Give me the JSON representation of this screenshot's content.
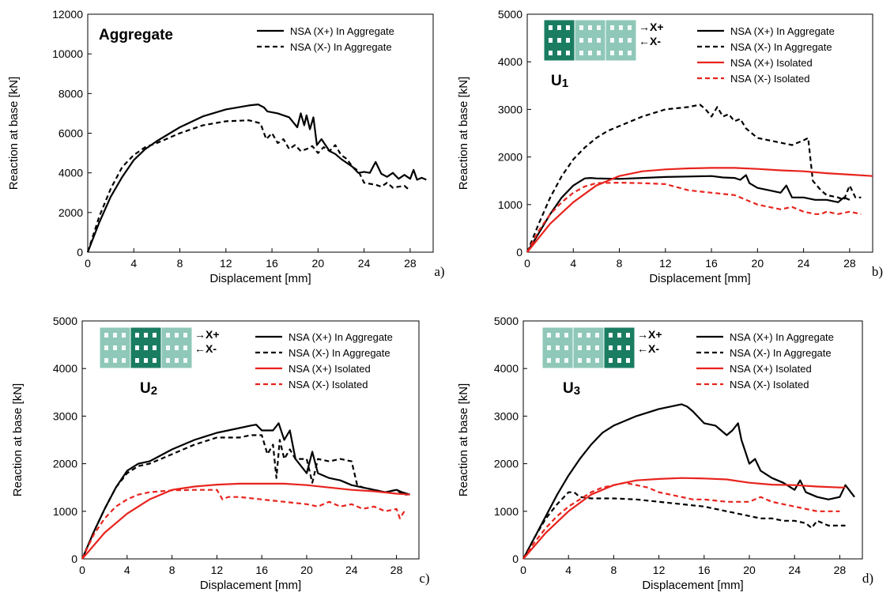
{
  "chart_data": [
    {
      "panel": "a)",
      "type": "line",
      "title": "Aggregate",
      "xlabel": "Displacement [mm]",
      "ylabel": "Reaction at base [kN]",
      "xlim": [
        0,
        30
      ],
      "ylim": [
        0,
        12000
      ],
      "xticks": [
        "0",
        "4",
        "8",
        "12",
        "16",
        "20",
        "24",
        "28"
      ],
      "yticks": [
        "0",
        "2000",
        "4000",
        "6000",
        "8000",
        "10000",
        "12000"
      ],
      "grid": false,
      "legend_position": "top-right",
      "series": [
        {
          "name": "NSA (X+) In Aggregate",
          "color": "#000000",
          "dashed": false,
          "x": [
            0,
            1,
            2,
            3,
            4,
            5,
            6,
            8,
            10,
            12,
            14,
            14.8,
            15.3,
            15.6,
            16.5,
            17.5,
            18.2,
            18.5,
            18.8,
            19.0,
            19.3,
            19.6,
            19.9,
            20.3,
            21,
            21.5,
            22,
            22.5,
            23,
            23.5,
            24,
            24.5,
            25,
            25.5,
            26,
            26.5,
            27,
            27.5,
            28,
            28.3,
            28.6,
            29,
            29.4
          ],
          "y": [
            0,
            1500,
            2800,
            3800,
            4650,
            5200,
            5600,
            6300,
            6850,
            7200,
            7400,
            7450,
            7300,
            7100,
            7000,
            6800,
            6300,
            7000,
            6400,
            6900,
            6200,
            6800,
            5400,
            5700,
            5100,
            4950,
            4700,
            4500,
            4300,
            4000,
            4050,
            4000,
            4550,
            3950,
            3800,
            4000,
            3700,
            3900,
            3700,
            4150,
            3650,
            3750,
            3650
          ]
        },
        {
          "name": "NSA (X-) In Aggregate",
          "color": "#000000",
          "dashed": true,
          "x": [
            0,
            1,
            2,
            3,
            4,
            5,
            6,
            8,
            10,
            12,
            14,
            15,
            15.5,
            16,
            16.5,
            17,
            17.5,
            18,
            18.5,
            19,
            19.5,
            20,
            20.5,
            21,
            21.5,
            22,
            22.5,
            23,
            23.5,
            24,
            24.5,
            25,
            25.5,
            26,
            26.5,
            27,
            27.5,
            28
          ],
          "y": [
            0,
            1800,
            3200,
            4300,
            4900,
            5300,
            5500,
            6000,
            6400,
            6600,
            6650,
            6500,
            5700,
            6000,
            5500,
            5700,
            5200,
            5400,
            5100,
            5200,
            5350,
            5000,
            5300,
            5100,
            5400,
            4900,
            4700,
            4300,
            4100,
            3500,
            3450,
            3400,
            3300,
            3500,
            3250,
            3300,
            3350,
            3100
          ]
        }
      ]
    },
    {
      "panel": "b)",
      "type": "line",
      "title": "U1",
      "xlabel": "Displacement [mm]",
      "ylabel": "Reaction at base [kN]",
      "xlim": [
        0,
        30
      ],
      "ylim": [
        0,
        5000
      ],
      "xticks": [
        "0",
        "4",
        "8",
        "12",
        "16",
        "20",
        "24",
        "28"
      ],
      "yticks": [
        "0",
        "1000",
        "2000",
        "3000",
        "4000",
        "5000"
      ],
      "grid": false,
      "legend_position": "top-right",
      "arrows": [
        "→X+",
        "←X-"
      ],
      "highlight_unit": 1,
      "series": [
        {
          "name": "NSA (X+) In Aggregate",
          "color": "#000000",
          "dashed": false,
          "x": [
            0,
            1,
            2,
            3,
            4,
            5,
            5.5,
            6,
            8,
            10,
            12,
            14,
            16,
            17,
            18,
            18.5,
            19,
            19.3,
            20,
            21,
            22,
            22.5,
            23,
            24,
            25,
            26,
            27,
            27.5,
            28
          ],
          "y": [
            0,
            400,
            800,
            1150,
            1400,
            1550,
            1560,
            1550,
            1540,
            1560,
            1580,
            1590,
            1600,
            1570,
            1560,
            1520,
            1620,
            1450,
            1350,
            1300,
            1250,
            1400,
            1150,
            1150,
            1100,
            1100,
            1050,
            1150,
            1100
          ]
        },
        {
          "name": "NSA (X-) In Aggregate",
          "color": "#000000",
          "dashed": true,
          "x": [
            0,
            1,
            2,
            3,
            4,
            5,
            6,
            7,
            8,
            10,
            12,
            14,
            15,
            15.5,
            16,
            16.5,
            17,
            17.5,
            18,
            18.5,
            19,
            19.5,
            20,
            21,
            22,
            23,
            24,
            24.4,
            24.8,
            25.5,
            26,
            27,
            27.5,
            28,
            28.5,
            29
          ],
          "y": [
            0,
            600,
            1150,
            1600,
            1950,
            2200,
            2400,
            2550,
            2650,
            2850,
            3000,
            3050,
            3100,
            3000,
            2850,
            3050,
            2850,
            2900,
            2750,
            2800,
            2600,
            2500,
            2400,
            2350,
            2300,
            2250,
            2350,
            2400,
            1500,
            1300,
            1200,
            1150,
            1100,
            1400,
            1150,
            1150
          ]
        },
        {
          "name": "NSA (X+) Isolated",
          "color": "#e8231d",
          "dashed": false,
          "x": [
            0,
            2,
            4,
            6,
            8,
            10,
            12,
            14,
            16,
            18,
            20,
            22,
            24,
            26,
            28,
            30
          ],
          "y": [
            0,
            600,
            1050,
            1400,
            1600,
            1700,
            1740,
            1760,
            1770,
            1770,
            1750,
            1720,
            1700,
            1660,
            1630,
            1600
          ]
        },
        {
          "name": "NSA (X-) Isolated",
          "color": "#e8231d",
          "dashed": true,
          "x": [
            0,
            1,
            2,
            3,
            4,
            5,
            6,
            8,
            10,
            12,
            14,
            16,
            18,
            19,
            20,
            21,
            22,
            23,
            24,
            25,
            25.5,
            26,
            27,
            28,
            29
          ],
          "y": [
            0,
            450,
            800,
            1050,
            1250,
            1380,
            1450,
            1460,
            1450,
            1430,
            1300,
            1250,
            1200,
            1100,
            1000,
            950,
            900,
            950,
            850,
            800,
            800,
            850,
            800,
            850,
            800
          ]
        }
      ]
    },
    {
      "panel": "c)",
      "type": "line",
      "title": "U2",
      "xlabel": "Displacement [mm]",
      "ylabel": "Reaction at base [kN]",
      "xlim": [
        0,
        30
      ],
      "ylim": [
        0,
        5000
      ],
      "xticks": [
        "0",
        "4",
        "8",
        "12",
        "16",
        "20",
        "24",
        "28"
      ],
      "yticks": [
        "0",
        "1000",
        "2000",
        "3000",
        "4000",
        "5000"
      ],
      "grid": false,
      "legend_position": "top-right",
      "arrows": [
        "→X+",
        "←X-"
      ],
      "highlight_unit": 2,
      "series": [
        {
          "name": "NSA (X+) In Aggregate",
          "color": "#000000",
          "dashed": false,
          "x": [
            0,
            1,
            2,
            3,
            4,
            5,
            6,
            8,
            10,
            12,
            14,
            15,
            15.5,
            16,
            17,
            17.5,
            18,
            18.5,
            19,
            20,
            20.5,
            21,
            22,
            23,
            24,
            25,
            26,
            27,
            28,
            28.5,
            29.2
          ],
          "y": [
            0,
            550,
            1050,
            1500,
            1850,
            2000,
            2050,
            2300,
            2500,
            2650,
            2750,
            2800,
            2820,
            2700,
            2700,
            2850,
            2500,
            2700,
            2100,
            1800,
            2250,
            1800,
            1700,
            1650,
            1550,
            1500,
            1450,
            1400,
            1450,
            1400,
            1350
          ]
        },
        {
          "name": "NSA (X-) In Aggregate",
          "color": "#000000",
          "dashed": true,
          "x": [
            0,
            1,
            2,
            3,
            4,
            5,
            6,
            8,
            10,
            12,
            14,
            15,
            16,
            16.5,
            17,
            17.3,
            17.6,
            18,
            18.5,
            19,
            20,
            20.5,
            21,
            22,
            23,
            24,
            24.5,
            25,
            26,
            27,
            28,
            28.6,
            29
          ],
          "y": [
            0,
            550,
            1050,
            1500,
            1800,
            1950,
            2000,
            2200,
            2400,
            2550,
            2550,
            2600,
            2600,
            2200,
            2400,
            1700,
            2500,
            2100,
            2300,
            2100,
            2100,
            1600,
            2100,
            2050,
            2100,
            2050,
            1550,
            1500,
            1450,
            1400,
            1450,
            1350,
            1350
          ]
        },
        {
          "name": "NSA (X+) Isolated",
          "color": "#e8231d",
          "dashed": false,
          "x": [
            0,
            2,
            4,
            6,
            8,
            10,
            12,
            14,
            16,
            18,
            20,
            22,
            24,
            26,
            28,
            29.2
          ],
          "y": [
            0,
            550,
            950,
            1250,
            1450,
            1520,
            1560,
            1580,
            1580,
            1580,
            1550,
            1500,
            1450,
            1420,
            1370,
            1350
          ]
        },
        {
          "name": "NSA (X-) Isolated",
          "color": "#e8231d",
          "dashed": true,
          "x": [
            0,
            1,
            2,
            3,
            4,
            5,
            6,
            7,
            8,
            10,
            12,
            12.5,
            13,
            14,
            16,
            18,
            20,
            21,
            22,
            23,
            24,
            25,
            26,
            27,
            28,
            28.3,
            28.7
          ],
          "y": [
            0,
            500,
            850,
            1100,
            1250,
            1350,
            1400,
            1420,
            1440,
            1450,
            1450,
            1250,
            1300,
            1300,
            1250,
            1200,
            1150,
            1100,
            1200,
            1100,
            1150,
            1050,
            1100,
            1000,
            1050,
            850,
            1000
          ]
        }
      ]
    },
    {
      "panel": "d)",
      "type": "line",
      "title": "U3",
      "xlabel": "Displacement [mm]",
      "ylabel": "Reaction at base [kN]",
      "xlim": [
        0,
        30
      ],
      "ylim": [
        0,
        5000
      ],
      "xticks": [
        "0",
        "4",
        "8",
        "12",
        "16",
        "20",
        "24",
        "28"
      ],
      "yticks": [
        "0",
        "1000",
        "2000",
        "3000",
        "4000",
        "5000"
      ],
      "grid": false,
      "legend_position": "top-right",
      "arrows": [
        "→X+",
        "←X-"
      ],
      "highlight_unit": 3,
      "series": [
        {
          "name": "NSA (X+) In Aggregate",
          "color": "#000000",
          "dashed": false,
          "x": [
            0,
            1,
            2,
            3,
            4,
            5,
            6,
            7,
            8,
            10,
            12,
            13,
            14,
            14.5,
            15,
            16,
            17,
            18,
            18.5,
            19,
            19.3,
            20,
            20.5,
            21,
            22,
            23,
            24,
            24.5,
            25,
            26,
            27,
            28,
            28.5,
            29.3
          ],
          "y": [
            0,
            450,
            900,
            1350,
            1750,
            2100,
            2400,
            2650,
            2800,
            3000,
            3150,
            3200,
            3250,
            3200,
            3100,
            2850,
            2800,
            2600,
            2700,
            2850,
            2500,
            2000,
            2100,
            1850,
            1700,
            1600,
            1450,
            1650,
            1400,
            1300,
            1250,
            1300,
            1550,
            1300
          ]
        },
        {
          "name": "NSA (X-) In Aggregate",
          "color": "#000000",
          "dashed": true,
          "x": [
            0,
            1,
            2,
            3,
            4,
            4.5,
            5,
            6,
            8,
            10,
            12,
            14,
            16,
            17,
            18,
            19,
            20,
            21,
            22,
            23,
            24,
            25,
            25.5,
            26,
            27,
            28,
            28.5
          ],
          "y": [
            0,
            450,
            850,
            1150,
            1400,
            1400,
            1300,
            1270,
            1270,
            1250,
            1200,
            1150,
            1100,
            1050,
            1000,
            950,
            900,
            850,
            850,
            800,
            800,
            750,
            650,
            800,
            700,
            700,
            700
          ]
        },
        {
          "name": "NSA (X+) Isolated",
          "color": "#e8231d",
          "dashed": false,
          "x": [
            0,
            2,
            4,
            6,
            8,
            10,
            12,
            14,
            16,
            18,
            20,
            22,
            24,
            26,
            28,
            28.5
          ],
          "y": [
            0,
            550,
            1000,
            1350,
            1550,
            1650,
            1680,
            1700,
            1690,
            1670,
            1600,
            1560,
            1550,
            1520,
            1500,
            1500
          ]
        },
        {
          "name": "NSA (X-) Isolated",
          "color": "#e8231d",
          "dashed": true,
          "x": [
            0,
            1,
            2,
            3,
            4,
            5,
            6,
            7,
            8,
            9,
            10,
            11,
            12,
            13,
            14,
            15,
            16,
            18,
            20,
            21,
            22,
            23,
            24,
            25,
            26,
            27,
            28
          ],
          "y": [
            0,
            350,
            650,
            900,
            1100,
            1250,
            1400,
            1500,
            1550,
            1600,
            1550,
            1500,
            1400,
            1350,
            1300,
            1250,
            1250,
            1200,
            1200,
            1300,
            1200,
            1150,
            1100,
            1050,
            1000,
            1000,
            1000
          ]
        }
      ]
    }
  ]
}
